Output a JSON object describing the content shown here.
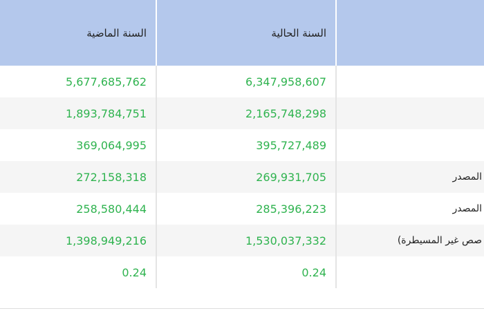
{
  "table": {
    "header": {
      "current_year": "السنة الحالية",
      "last_year": "السنة الماضية"
    },
    "rows": [
      {
        "current": "6,347,958,607",
        "last": "5,677,685,762"
      },
      {
        "current": "2,165,748,298",
        "last": "1,893,784,751"
      },
      {
        "current": "395,727,489",
        "last": "369,064,995"
      },
      {
        "label": "المصدر",
        "current": "269,931,705",
        "last": "272,158,318"
      },
      {
        "label": "المصدر",
        "current": "285,396,223",
        "last": "258,580,444"
      },
      {
        "label": "صص غير المسيطرة)",
        "current": "1,530,037,332",
        "last": "1,398,949,216"
      },
      {
        "current": "0.24",
        "last": "0.24"
      }
    ]
  }
}
